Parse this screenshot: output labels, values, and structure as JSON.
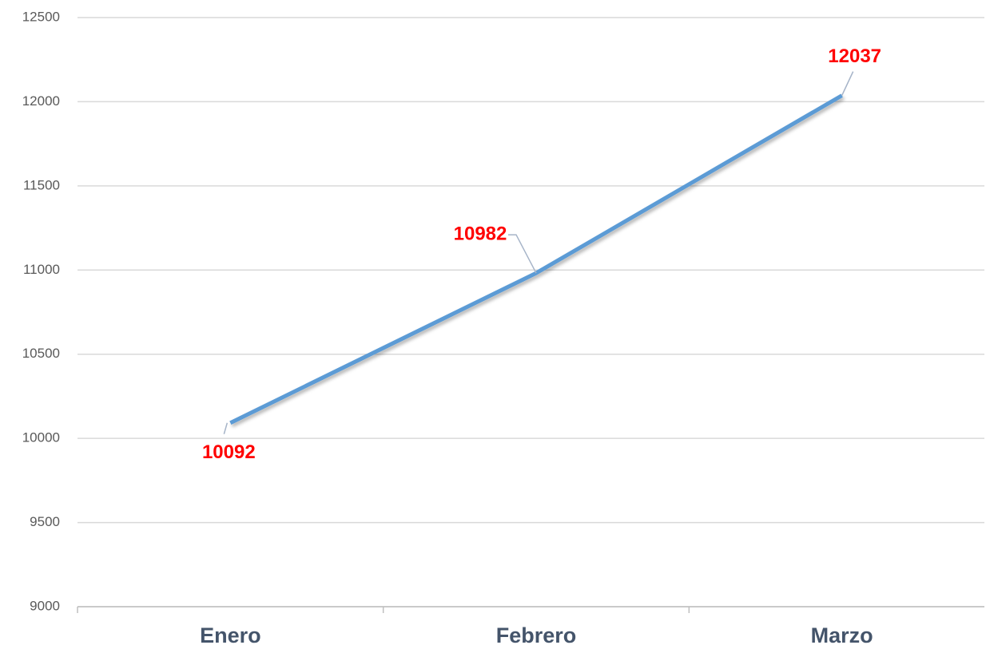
{
  "chart_data": {
    "type": "line",
    "categories": [
      "Enero",
      "Febrero",
      "Marzo"
    ],
    "series": [
      {
        "color": "#5b9bd5",
        "values": [
          10092,
          10982,
          12037
        ]
      }
    ],
    "ylim": [
      9000,
      12500
    ],
    "yticks": [
      9000,
      9500,
      10000,
      10500,
      11000,
      11500,
      12000,
      12500
    ],
    "grid": true
  }
}
